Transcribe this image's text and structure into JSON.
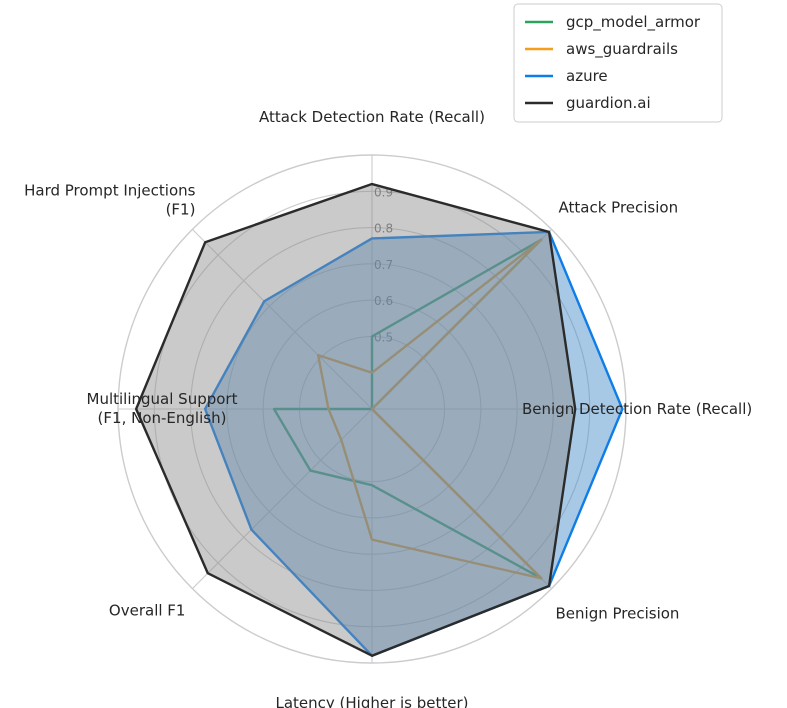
{
  "chart_data": {
    "type": "radar",
    "axes": [
      [
        "Attack Detection Rate (Recall)"
      ],
      [
        "Attack Precision"
      ],
      [
        "Benign Detection Rate (Recall)"
      ],
      [
        "Benign Precision"
      ],
      [
        "Latency (Higher is better)"
      ],
      [
        "Overall F1"
      ],
      [
        "Multilingual Support",
        "(F1, Non-English)"
      ],
      [
        "Hard Prompt Injections",
        "(F1)"
      ]
    ],
    "rlim": [
      0.3,
      1.0
    ],
    "ticks": [
      "0.5",
      "0.6",
      "0.7",
      "0.8",
      "0.9"
    ],
    "tick_values": [
      0.5,
      0.6,
      0.7,
      0.8,
      0.9
    ],
    "grid": true,
    "legend_position": "top-right",
    "series": [
      {
        "name": "gcp_model_armor",
        "color": "#2ca25f",
        "fill": false,
        "values": [
          0.5,
          0.96,
          0.3,
          0.96,
          0.51,
          0.54,
          0.57,
          0.3
        ]
      },
      {
        "name": "aws_guardrails",
        "color": "#f59d1c",
        "fill": false,
        "values": [
          0.4,
          0.96,
          0.3,
          0.96,
          0.66,
          0.42,
          0.42,
          0.51
        ]
      },
      {
        "name": "azure",
        "color": "#0f7de8",
        "fill": true,
        "fill_color": "#3f88c5",
        "values": [
          0.77,
          0.99,
          0.99,
          0.99,
          0.98,
          0.77,
          0.76,
          0.72
        ]
      },
      {
        "name": "guardion.ai",
        "color": "#2b2b2b",
        "fill": true,
        "fill_color": "#8a8a8a",
        "values": [
          0.92,
          0.99,
          0.86,
          0.99,
          0.98,
          0.94,
          0.95,
          0.95
        ]
      }
    ]
  }
}
